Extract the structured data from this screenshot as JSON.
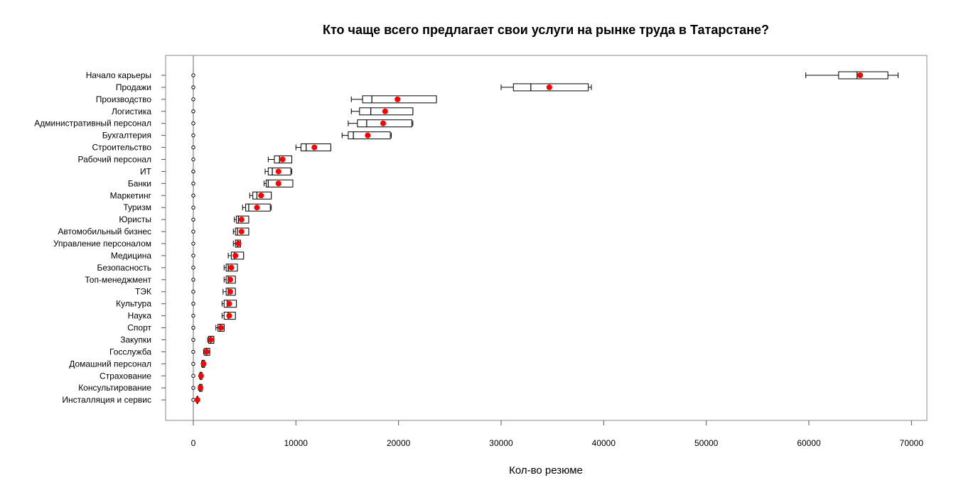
{
  "chart_data": {
    "type": "boxplot",
    "title": "Кто чаще всего предлагает свои услуги на рынке труда в Татарстане?",
    "xlabel": "Кол-во резюме",
    "ylabel": "",
    "xlim": [
      -2700,
      71500
    ],
    "x_ticks": [
      0,
      10000,
      20000,
      30000,
      40000,
      50000,
      60000,
      70000
    ],
    "reference_line": 0,
    "grid": false,
    "mean_color": "#ff0000",
    "box_color": "#000000",
    "categories": [
      {
        "name": "Начало карьеры",
        "whisker_low": 59700,
        "q1": 62900,
        "median": 64700,
        "q3": 67700,
        "whisker_high": 68700,
        "mean": 65000
      },
      {
        "name": "Продажи",
        "whisker_low": 30000,
        "q1": 31200,
        "median": 32900,
        "q3": 38500,
        "whisker_high": 38800,
        "mean": 34700
      },
      {
        "name": "Производство",
        "whisker_low": 15400,
        "q1": 16500,
        "median": 17400,
        "q3": 23700,
        "whisker_high": 23700,
        "mean": 19900
      },
      {
        "name": "Логистика",
        "whisker_low": 15400,
        "q1": 16200,
        "median": 17300,
        "q3": 21400,
        "whisker_high": 21400,
        "mean": 18700
      },
      {
        "name": "Административный персонал",
        "whisker_low": 15100,
        "q1": 16000,
        "median": 16900,
        "q3": 21300,
        "whisker_high": 21400,
        "mean": 18500
      },
      {
        "name": "Бухгалтерия",
        "whisker_low": 14500,
        "q1": 15100,
        "median": 15600,
        "q3": 19200,
        "whisker_high": 19300,
        "mean": 17000
      },
      {
        "name": "Строительство",
        "whisker_low": 10000,
        "q1": 10500,
        "median": 11000,
        "q3": 13400,
        "whisker_high": 13400,
        "mean": 11800
      },
      {
        "name": "Рабочий персонал",
        "whisker_low": 7300,
        "q1": 7900,
        "median": 8400,
        "q3": 9600,
        "whisker_high": 9600,
        "mean": 8700
      },
      {
        "name": "ИТ",
        "whisker_low": 7000,
        "q1": 7300,
        "median": 7700,
        "q3": 9500,
        "whisker_high": 9600,
        "mean": 8300
      },
      {
        "name": "Банки",
        "whisker_low": 6900,
        "q1": 7100,
        "median": 7300,
        "q3": 9700,
        "whisker_high": 9700,
        "mean": 8300
      },
      {
        "name": "Маркетинг",
        "whisker_low": 5500,
        "q1": 5800,
        "median": 6200,
        "q3": 7600,
        "whisker_high": 7600,
        "mean": 6600
      },
      {
        "name": "Туризм",
        "whisker_low": 4800,
        "q1": 5100,
        "median": 5400,
        "q3": 7500,
        "whisker_high": 7600,
        "mean": 6200
      },
      {
        "name": "Юристы",
        "whisker_low": 4000,
        "q1": 4200,
        "median": 4400,
        "q3": 5400,
        "whisker_high": 5400,
        "mean": 4700
      },
      {
        "name": "Автомобильный бизнес",
        "whisker_low": 3900,
        "q1": 4100,
        "median": 4300,
        "q3": 5400,
        "whisker_high": 5400,
        "mean": 4700
      },
      {
        "name": "Управление персоналом",
        "whisker_low": 3900,
        "q1": 4100,
        "median": 4300,
        "q3": 4600,
        "whisker_high": 4600,
        "mean": 4400
      },
      {
        "name": "Медицина",
        "whisker_low": 3400,
        "q1": 3700,
        "median": 4000,
        "q3": 4900,
        "whisker_high": 4900,
        "mean": 4100
      },
      {
        "name": "Безопасность",
        "whisker_low": 3000,
        "q1": 3200,
        "median": 3400,
        "q3": 4300,
        "whisker_high": 4300,
        "mean": 3700
      },
      {
        "name": "Топ-менеджмент",
        "whisker_low": 3000,
        "q1": 3200,
        "median": 3400,
        "q3": 4100,
        "whisker_high": 4100,
        "mean": 3600
      },
      {
        "name": "ТЭК",
        "whisker_low": 2900,
        "q1": 3200,
        "median": 3400,
        "q3": 4100,
        "whisker_high": 4100,
        "mean": 3600
      },
      {
        "name": "Культура",
        "whisker_low": 2800,
        "q1": 3000,
        "median": 3300,
        "q3": 4200,
        "whisker_high": 4200,
        "mean": 3500
      },
      {
        "name": "Наука",
        "whisker_low": 2800,
        "q1": 3000,
        "median": 3400,
        "q3": 4100,
        "whisker_high": 4100,
        "mean": 3500
      },
      {
        "name": "Спорт",
        "whisker_low": 2200,
        "q1": 2400,
        "median": 2600,
        "q3": 3000,
        "whisker_high": 3000,
        "mean": 2700
      },
      {
        "name": "Закупки",
        "whisker_low": 1400,
        "q1": 1500,
        "median": 1700,
        "q3": 2000,
        "whisker_high": 2000,
        "mean": 1700
      },
      {
        "name": "Госслужба",
        "whisker_low": 1000,
        "q1": 1100,
        "median": 1300,
        "q3": 1600,
        "whisker_high": 1600,
        "mean": 1300
      },
      {
        "name": "Домашний персонал",
        "whisker_low": 800,
        "q1": 850,
        "median": 950,
        "q3": 1100,
        "whisker_high": 1100,
        "mean": 1000
      },
      {
        "name": "Страхование",
        "whisker_low": 600,
        "q1": 650,
        "median": 700,
        "q3": 850,
        "whisker_high": 850,
        "mean": 750
      },
      {
        "name": "Консультирование",
        "whisker_low": 500,
        "q1": 600,
        "median": 700,
        "q3": 850,
        "whisker_high": 850,
        "mean": 700
      },
      {
        "name": "Инсталляция и сервис",
        "whisker_low": 300,
        "q1": 350,
        "median": 400,
        "q3": 450,
        "whisker_high": 450,
        "mean": 400
      }
    ]
  }
}
